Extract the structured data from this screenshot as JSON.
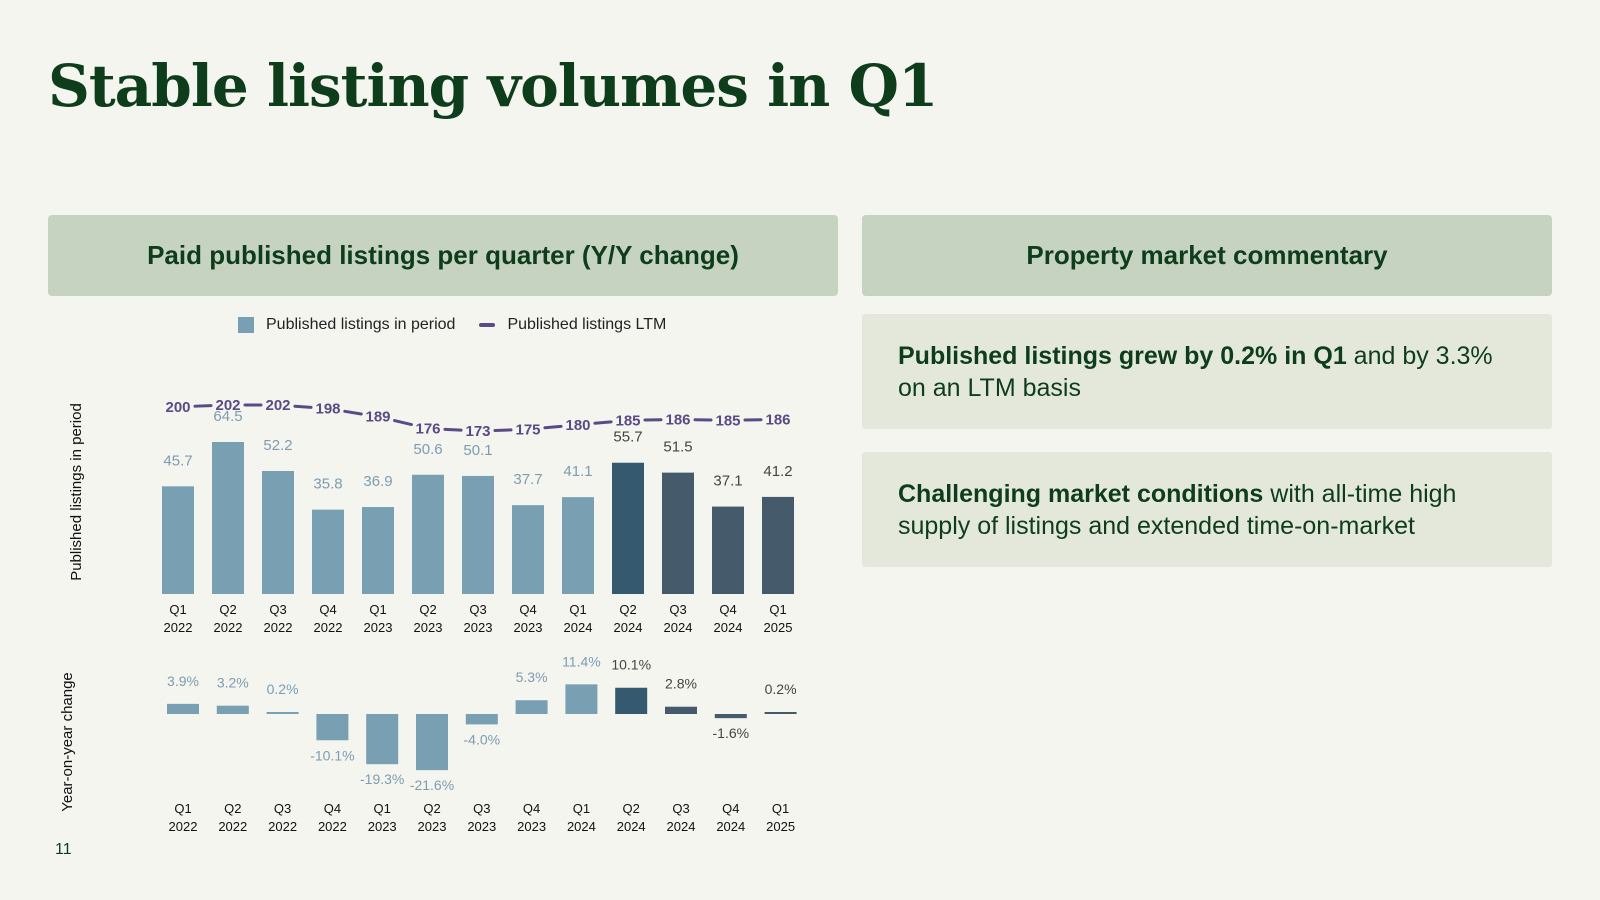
{
  "title": "Stable listing volumes in Q1",
  "left_header": "Paid published listings per quarter (Y/Y change)",
  "right_header": "Property market commentary",
  "legend": {
    "bar_label": "Published listings in period",
    "line_label": "Published listings LTM"
  },
  "commentary": [
    {
      "bold": "Published listings grew by 0.2% in Q1",
      "rest": " and by 3.3% on an LTM basis"
    },
    {
      "bold": "Challenging market conditions",
      "rest": " with all-time high supply of listings and extended time-on-market"
    }
  ],
  "page_number": "11",
  "colors": {
    "light_bar": "#78a0b2",
    "dark_bar_q2_2024": "#355a70",
    "dark_bar": "#455a6b",
    "line": "#5a4a86",
    "light_label": "#7d9cb1",
    "dark_label": "#444444"
  },
  "chart_data": [
    {
      "type": "bar",
      "title": "Published listings per quarter",
      "ylabel": "Published listings in period",
      "categories": [
        [
          "Q1",
          "2022"
        ],
        [
          "Q2",
          "2022"
        ],
        [
          "Q3",
          "2022"
        ],
        [
          "Q4",
          "2022"
        ],
        [
          "Q1",
          "2023"
        ],
        [
          "Q2",
          "2023"
        ],
        [
          "Q3",
          "2023"
        ],
        [
          "Q4",
          "2023"
        ],
        [
          "Q1",
          "2024"
        ],
        [
          "Q2",
          "2024"
        ],
        [
          "Q3",
          "2024"
        ],
        [
          "Q4",
          "2024"
        ],
        [
          "Q1",
          "2025"
        ]
      ],
      "series": [
        {
          "name": "Published listings in period",
          "type": "bar",
          "values": [
            45.7,
            64.5,
            52.2,
            35.8,
            36.9,
            50.6,
            50.1,
            37.7,
            41.1,
            55.7,
            51.5,
            37.1,
            41.2
          ],
          "labels": [
            "45.7",
            "64.5",
            "52.2",
            "35.8",
            "36.9",
            "50.6",
            "50.1",
            "37.7",
            "41.1",
            "55.7",
            "51.5",
            "37.1",
            "41.2"
          ]
        },
        {
          "name": "Published listings LTM",
          "type": "line",
          "values": [
            200,
            202,
            202,
            198,
            189,
            176,
            173,
            175,
            180,
            185,
            186,
            185,
            186
          ],
          "labels": [
            "200",
            "202",
            "202",
            "198",
            "189",
            "176",
            "173",
            "175",
            "180",
            "185",
            "186",
            "185",
            "186"
          ]
        }
      ],
      "ylim": [
        0,
        64.5
      ]
    },
    {
      "type": "bar",
      "title": "Year-on-year change",
      "ylabel": "Year-on-year change",
      "categories": [
        [
          "Q1",
          "2022"
        ],
        [
          "Q2",
          "2022"
        ],
        [
          "Q3",
          "2022"
        ],
        [
          "Q4",
          "2022"
        ],
        [
          "Q1",
          "2023"
        ],
        [
          "Q2",
          "2023"
        ],
        [
          "Q3",
          "2023"
        ],
        [
          "Q4",
          "2023"
        ],
        [
          "Q1",
          "2024"
        ],
        [
          "Q2",
          "2024"
        ],
        [
          "Q3",
          "2024"
        ],
        [
          "Q4",
          "2024"
        ],
        [
          "Q1",
          "2025"
        ]
      ],
      "series": [
        {
          "name": "Year-on-year change",
          "unit": "%",
          "values": [
            3.9,
            3.2,
            0.2,
            -10.1,
            -19.3,
            -21.6,
            -4.0,
            5.3,
            11.4,
            10.1,
            2.8,
            -1.6,
            0.2
          ],
          "labels": [
            "3.9%",
            "3.2%",
            "0.2%",
            "-10.1%",
            "-19.3%",
            "-21.6%",
            "-4.0%",
            "5.3%",
            "11.4%",
            "10.1%",
            "2.8%",
            "-1.6%",
            "0.2%"
          ]
        }
      ]
    }
  ]
}
